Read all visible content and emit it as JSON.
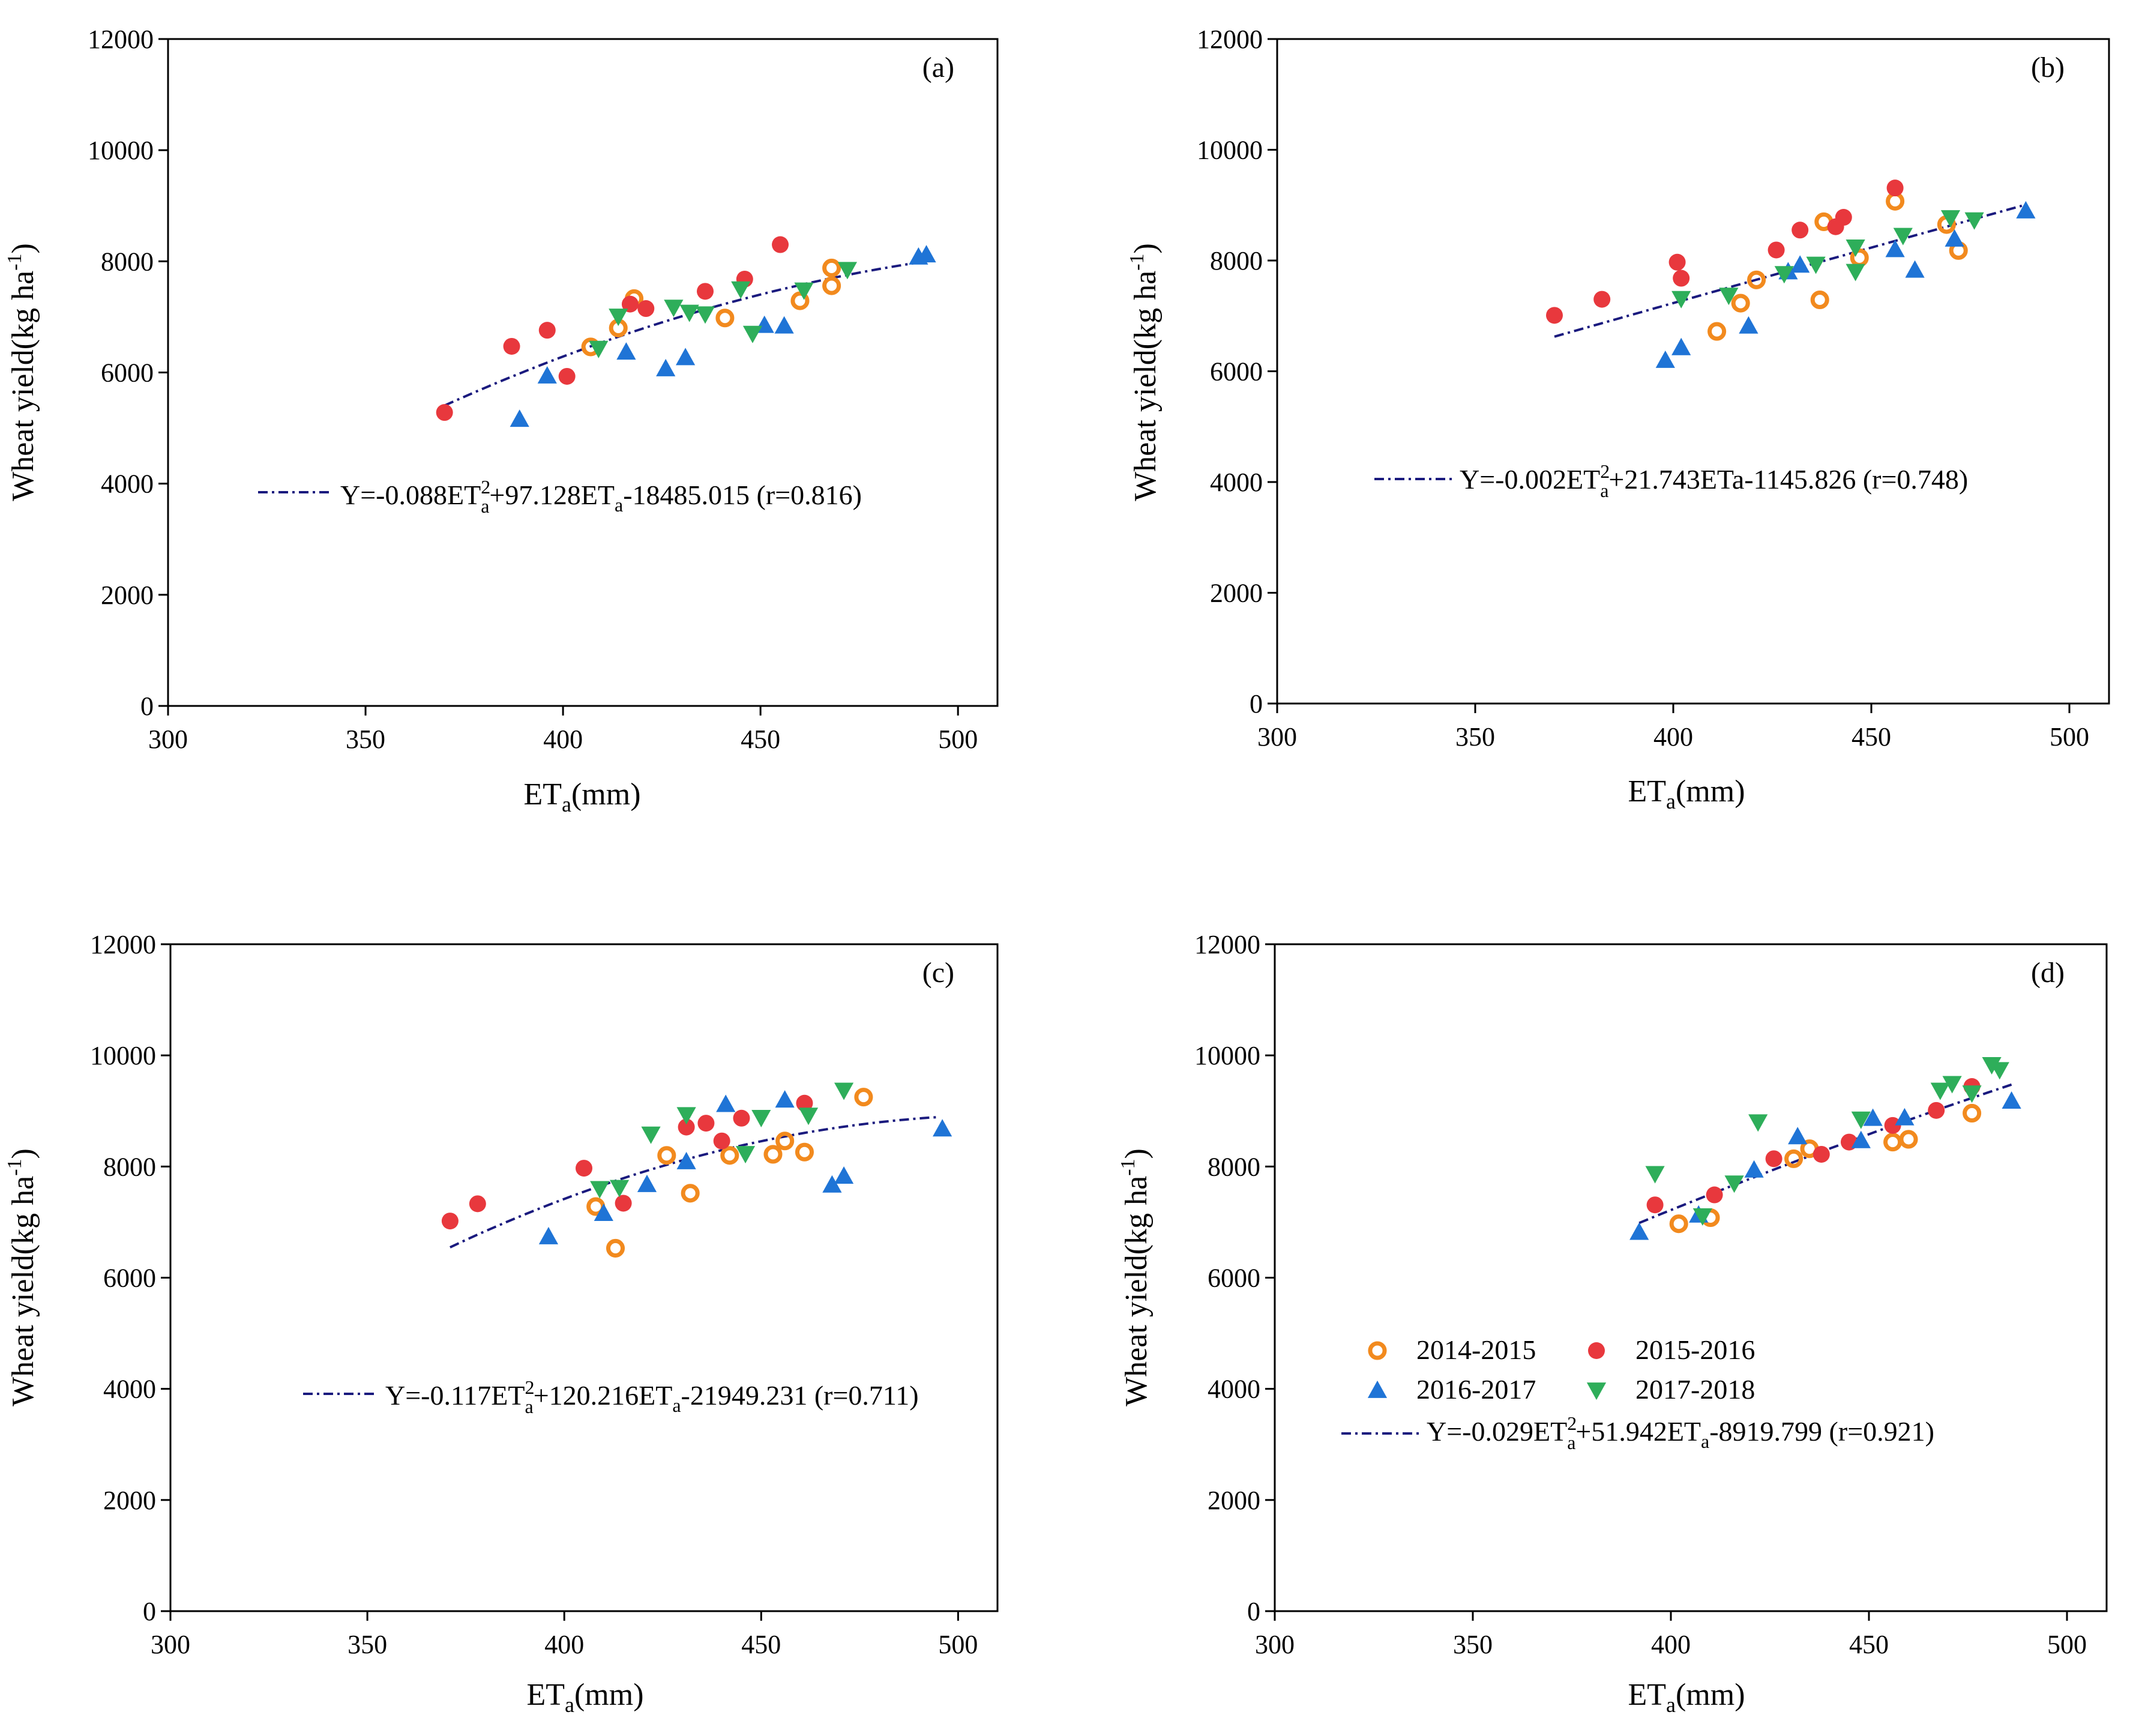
{
  "figure": {
    "series_styles": {
      "2014-2015": {
        "marker": "circle-open",
        "color": "#F28A1E"
      },
      "2015-2016": {
        "marker": "circle-filled",
        "color": "#E8383D"
      },
      "2016-2017": {
        "marker": "triangle-up",
        "color": "#1F74D6"
      },
      "2017-2018": {
        "marker": "triangle-down",
        "color": "#2EAE5A"
      }
    },
    "fit_color": "#1A1A7E",
    "legend": {
      "entries": [
        "2014-2015",
        "2015-2016",
        "2016-2017",
        "2017-2018"
      ]
    }
  },
  "chart_data": [
    {
      "type": "scatter",
      "tag": "(a)",
      "xlabel": "ET",
      "xlabel_sub": "a",
      "xlabel_unit": "(mm)",
      "ylabel": "Wheat yield(kg ha",
      "ylabel_sup": "-1",
      "ylabel_close": ")",
      "xlim": [
        300,
        510
      ],
      "ylim": [
        0,
        12000
      ],
      "xticks": [
        300,
        350,
        400,
        450,
        500
      ],
      "yticks": [
        0,
        2000,
        4000,
        6000,
        8000,
        10000,
        12000
      ],
      "fit": {
        "a": -0.088,
        "b": 97.128,
        "c": -18485.015,
        "x_range": [
          370,
          492
        ]
      },
      "equation": {
        "y": "Y=",
        "c2": "-0.088ET",
        "sup2": "2",
        "sub2": "a",
        "c1": "+97.128ET",
        "sub1": "a",
        "c0": "-18485.015 (r=0.816)"
      },
      "series": [
        {
          "name": "2014-2015",
          "points": [
            [
              407,
              6460
            ],
            [
              414,
              6800
            ],
            [
              418,
              7330
            ],
            [
              441,
              6980
            ],
            [
              460,
              7290
            ],
            [
              468,
              7560
            ],
            [
              468,
              7880
            ]
          ]
        },
        {
          "name": "2015-2016",
          "points": [
            [
              370,
              5280
            ],
            [
              387,
              6470
            ],
            [
              396,
              6760
            ],
            [
              401,
              5930
            ],
            [
              417,
              7230
            ],
            [
              421,
              7150
            ],
            [
              436,
              7460
            ],
            [
              446,
              7680
            ],
            [
              455,
              8300
            ]
          ]
        },
        {
          "name": "2016-2017",
          "points": [
            [
              389,
              5160
            ],
            [
              396,
              5940
            ],
            [
              416,
              6370
            ],
            [
              426,
              6070
            ],
            [
              431,
              6270
            ],
            [
              451,
              6850
            ],
            [
              456,
              6840
            ],
            [
              490,
              8080
            ],
            [
              492,
              8120
            ]
          ]
        },
        {
          "name": "2017-2018",
          "points": [
            [
              409,
              6430
            ],
            [
              414,
              7010
            ],
            [
              428,
              7170
            ],
            [
              432,
              7080
            ],
            [
              436,
              7050
            ],
            [
              445,
              7500
            ],
            [
              448,
              6700
            ],
            [
              461,
              7480
            ],
            [
              472,
              7850
            ]
          ]
        }
      ]
    },
    {
      "type": "scatter",
      "tag": "(b)",
      "xlabel": "ET",
      "xlabel_sub": "a",
      "xlabel_unit": "(mm)",
      "ylabel": "Wheat yield(kg ha",
      "ylabel_sup": "-1",
      "ylabel_close": ")",
      "xlim": [
        300,
        510
      ],
      "ylim": [
        0,
        12000
      ],
      "xticks": [
        300,
        350,
        400,
        450,
        500
      ],
      "yticks": [
        0,
        2000,
        4000,
        6000,
        8000,
        10000,
        12000
      ],
      "fit": {
        "a": -0.002,
        "b": 21.743,
        "c": -1145.826,
        "x_range": [
          370,
          488
        ]
      },
      "equation": {
        "y": "Y=",
        "c2": "-0.002ET",
        "sup2": "2",
        "sub2": "a",
        "c1": "+21.743ETa-1145.826 (r=0.748)",
        "sub1": "",
        "c0": ""
      },
      "series": [
        {
          "name": "2014-2015",
          "points": [
            [
              411,
              6720
            ],
            [
              417,
              7230
            ],
            [
              421,
              7650
            ],
            [
              437,
              7290
            ],
            [
              438,
              8700
            ],
            [
              447,
              8050
            ],
            [
              456,
              9070
            ],
            [
              469,
              8650
            ],
            [
              472,
              8180
            ]
          ]
        },
        {
          "name": "2015-2016",
          "points": [
            [
              370,
              7010
            ],
            [
              382,
              7300
            ],
            [
              401,
              7970
            ],
            [
              402,
              7680
            ],
            [
              426,
              8190
            ],
            [
              432,
              8550
            ],
            [
              441,
              8610
            ],
            [
              443,
              8780
            ],
            [
              456,
              9310
            ]
          ]
        },
        {
          "name": "2016-2017",
          "points": [
            [
              398,
              6200
            ],
            [
              402,
              6430
            ],
            [
              419,
              6820
            ],
            [
              429,
              7800
            ],
            [
              432,
              7920
            ],
            [
              456,
              8200
            ],
            [
              461,
              7830
            ],
            [
              471,
              8390
            ],
            [
              489,
              8900
            ]
          ]
        },
        {
          "name": "2017-2018",
          "points": [
            [
              402,
              7310
            ],
            [
              414,
              7370
            ],
            [
              428,
              7760
            ],
            [
              436,
              7930
            ],
            [
              446,
              8240
            ],
            [
              446,
              7800
            ],
            [
              458,
              8450
            ],
            [
              470,
              8770
            ],
            [
              476,
              8730
            ]
          ]
        }
      ]
    },
    {
      "type": "scatter",
      "tag": "(c)",
      "xlabel": "ET",
      "xlabel_sub": "a",
      "xlabel_unit": "(mm)",
      "ylabel": "Wheat yield(kg ha",
      "ylabel_sup": "-1",
      "ylabel_close": ")",
      "xlim": [
        300,
        510
      ],
      "ylim": [
        0,
        12000
      ],
      "xticks": [
        300,
        350,
        400,
        450,
        500
      ],
      "yticks": [
        0,
        2000,
        4000,
        6000,
        8000,
        10000,
        12000
      ],
      "fit": {
        "a": -0.117,
        "b": 120.216,
        "c": -21949.231,
        "x_range": [
          371,
          495
        ]
      },
      "equation": {
        "y": "Y=",
        "c2": "-0.117ET",
        "sup2": "2",
        "sub2": "a",
        "c1": "+120.216ET",
        "sub1": "a",
        "c0": "-21949.231 (r=0.711)"
      },
      "series": [
        {
          "name": "2014-2015",
          "points": [
            [
              408,
              7280
            ],
            [
              413,
              6530
            ],
            [
              426,
              8200
            ],
            [
              432,
              7520
            ],
            [
              442,
              8200
            ],
            [
              453,
              8220
            ],
            [
              456,
              8460
            ],
            [
              461,
              8260
            ],
            [
              476,
              9250
            ]
          ]
        },
        {
          "name": "2015-2016",
          "points": [
            [
              371,
              7020
            ],
            [
              378,
              7330
            ],
            [
              405,
              7970
            ],
            [
              415,
              7340
            ],
            [
              431,
              8710
            ],
            [
              436,
              8780
            ],
            [
              440,
              8460
            ],
            [
              445,
              8870
            ],
            [
              461,
              9140
            ]
          ]
        },
        {
          "name": "2016-2017",
          "points": [
            [
              396,
              6740
            ],
            [
              410,
              7160
            ],
            [
              421,
              7680
            ],
            [
              431,
              8090
            ],
            [
              441,
              9120
            ],
            [
              456,
              9200
            ],
            [
              468,
              7670
            ],
            [
              471,
              7830
            ],
            [
              496,
              8680
            ]
          ]
        },
        {
          "name": "2017-2018",
          "points": [
            [
              409,
              7600
            ],
            [
              414,
              7620
            ],
            [
              422,
              8580
            ],
            [
              431,
              8930
            ],
            [
              446,
              8230
            ],
            [
              450,
              8880
            ],
            [
              462,
              8920
            ],
            [
              471,
              9370
            ]
          ]
        }
      ]
    },
    {
      "type": "scatter",
      "tag": "(d)",
      "xlabel": "ET",
      "xlabel_sub": "a",
      "xlabel_unit": "(mm)",
      "ylabel": "Wheat yield(kg ha",
      "ylabel_sup": "-1",
      "ylabel_close": ")",
      "xlim": [
        300,
        510
      ],
      "ylim": [
        0,
        12000
      ],
      "xticks": [
        300,
        350,
        400,
        450,
        500
      ],
      "yticks": [
        0,
        2000,
        4000,
        6000,
        8000,
        10000,
        12000
      ],
      "fit": {
        "a": -0.029,
        "b": 51.942,
        "c": -8919.799,
        "x_range": [
          392,
          486
        ]
      },
      "equation": {
        "y": "Y=",
        "c2": "-0.029ET",
        "sup2": "2",
        "sub2": "a",
        "c1": "+51.942ET",
        "sub1": "a",
        "c0": "-8919.799 (r=0.921)"
      },
      "legend": true,
      "series": [
        {
          "name": "2014-2015",
          "points": [
            [
              402,
              6970
            ],
            [
              410,
              7080
            ],
            [
              431,
              8140
            ],
            [
              435,
              8320
            ],
            [
              456,
              8440
            ],
            [
              460,
              8490
            ],
            [
              476,
              8960
            ]
          ]
        },
        {
          "name": "2015-2016",
          "points": [
            [
              396,
              7310
            ],
            [
              411,
              7490
            ],
            [
              426,
              8140
            ],
            [
              438,
              8220
            ],
            [
              445,
              8440
            ],
            [
              456,
              8740
            ],
            [
              467,
              9010
            ],
            [
              476,
              9440
            ]
          ]
        },
        {
          "name": "2016-2017",
          "points": [
            [
              392,
              6820
            ],
            [
              407,
              7130
            ],
            [
              421,
              7940
            ],
            [
              432,
              8540
            ],
            [
              448,
              8470
            ],
            [
              451,
              8870
            ],
            [
              459,
              8880
            ],
            [
              486,
              9180
            ]
          ]
        },
        {
          "name": "2017-2018",
          "points": [
            [
              396,
              7870
            ],
            [
              408,
              7110
            ],
            [
              416,
              7700
            ],
            [
              422,
              8800
            ],
            [
              448,
              8850
            ],
            [
              468,
              9370
            ],
            [
              471,
              9490
            ],
            [
              476,
              9320
            ],
            [
              481,
              9830
            ],
            [
              483,
              9740
            ]
          ]
        }
      ]
    }
  ]
}
